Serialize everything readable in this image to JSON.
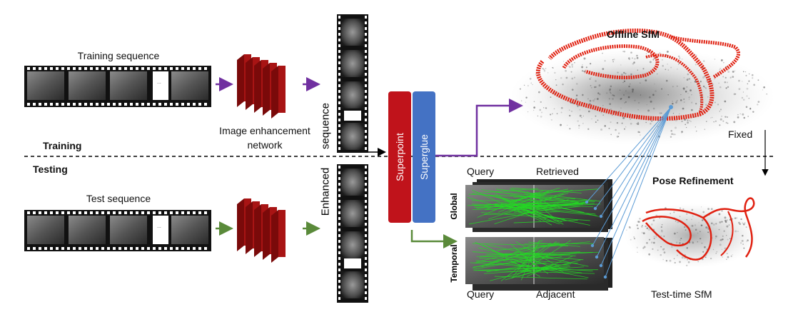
{
  "sections": {
    "training": "Training",
    "testing": "Testing"
  },
  "inputs": {
    "training_sequence": "Training sequence",
    "test_sequence": "Test sequence",
    "ellipsis": "..."
  },
  "enhancement": {
    "label_line1": "Image enhancement",
    "label_line2": "network",
    "output_word1": "Enhanced",
    "output_word2": "sequence"
  },
  "matching": {
    "superpoint": "Superpoint",
    "superglue": "Superglue"
  },
  "retrieval": {
    "query_top": "Query",
    "retrieved": "Retrieved",
    "global": "Global",
    "temporal": "Temporal",
    "query_bottom": "Query",
    "adjacent": "Adjacent"
  },
  "sfm": {
    "offline": "Offline SfM",
    "fixed": "Fixed",
    "pose_refinement": "Pose Refinement",
    "test_time": "Test-time SfM"
  },
  "colors": {
    "enhance_net": "#a81414",
    "enhance_net_dark": "#7a0a0a",
    "superpoint": "#c0131b",
    "superglue": "#4472c4",
    "arrow_purple": "#7030a0",
    "arrow_green": "#5a8a3a",
    "trajectory_red": "#e02010",
    "match_green": "#22dd22",
    "link_blue": "#5b9bd5"
  }
}
